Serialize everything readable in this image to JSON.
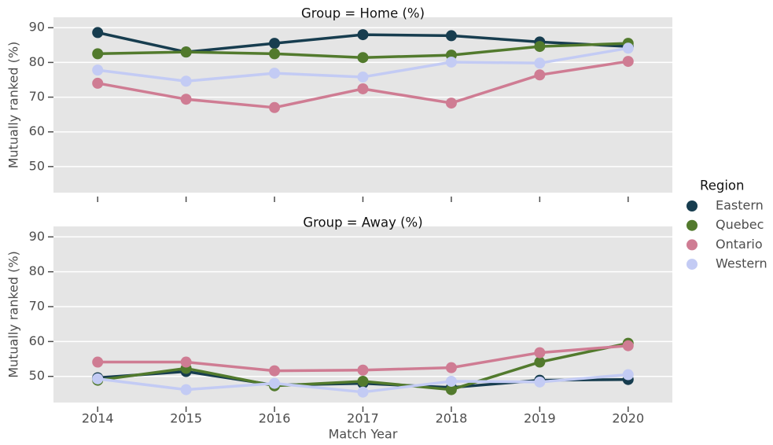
{
  "chart_data": [
    {
      "type": "line",
      "title": "Group = Home (%)",
      "y_label": "Mutually ranked (%)",
      "x": [
        2014,
        2015,
        2016,
        2017,
        2018,
        2019,
        2020
      ],
      "xlim": [
        2013.5,
        2020.5
      ],
      "xticks": [
        2014,
        2015,
        2016,
        2017,
        2018,
        2019,
        2020
      ],
      "ylim": [
        42.5,
        93
      ],
      "yticks": [
        50,
        60,
        70,
        80,
        90
      ],
      "grid": true,
      "legend": {
        "title": "Region",
        "position": "right"
      },
      "series": [
        {
          "name": "Eastern",
          "color": "#173d4f",
          "values": [
            88.6,
            83.0,
            85.5,
            88.0,
            87.7,
            85.9,
            84.6
          ]
        },
        {
          "name": "Quebec",
          "color": "#527a2d",
          "values": [
            82.5,
            83.0,
            82.5,
            81.4,
            82.1,
            84.6,
            85.5
          ]
        },
        {
          "name": "Ontario",
          "color": "#cf7c93",
          "values": [
            74.0,
            69.4,
            67.0,
            72.4,
            68.3,
            76.4,
            80.3
          ]
        },
        {
          "name": "Western",
          "color": "#c3cbf4",
          "values": [
            77.8,
            74.6,
            76.9,
            75.8,
            80.1,
            79.8,
            84.1
          ]
        }
      ]
    },
    {
      "type": "line",
      "title": "Group = Away (%)",
      "y_label": "Mutually ranked (%)",
      "x_label": "Match Year",
      "x": [
        2014,
        2015,
        2016,
        2017,
        2018,
        2019,
        2020
      ],
      "xlim": [
        2013.5,
        2020.5
      ],
      "xticks": [
        2014,
        2015,
        2016,
        2017,
        2018,
        2019,
        2020
      ],
      "ylim": [
        42.5,
        93
      ],
      "yticks": [
        50,
        60,
        70,
        80,
        90
      ],
      "grid": true,
      "series": [
        {
          "name": "Eastern",
          "color": "#173d4f",
          "values": [
            49.6,
            51.4,
            47.5,
            48.0,
            46.8,
            48.9,
            49.1
          ]
        },
        {
          "name": "Quebec",
          "color": "#527a2d",
          "values": [
            48.9,
            52.3,
            47.3,
            48.6,
            46.2,
            54.1,
            59.5
          ]
        },
        {
          "name": "Ontario",
          "color": "#cf7c93",
          "values": [
            54.1,
            54.1,
            51.6,
            51.8,
            52.5,
            56.8,
            58.8
          ]
        },
        {
          "name": "Western",
          "color": "#c3cbf4",
          "values": [
            49.3,
            46.2,
            48.0,
            45.5,
            48.6,
            48.4,
            50.5
          ]
        }
      ]
    }
  ]
}
